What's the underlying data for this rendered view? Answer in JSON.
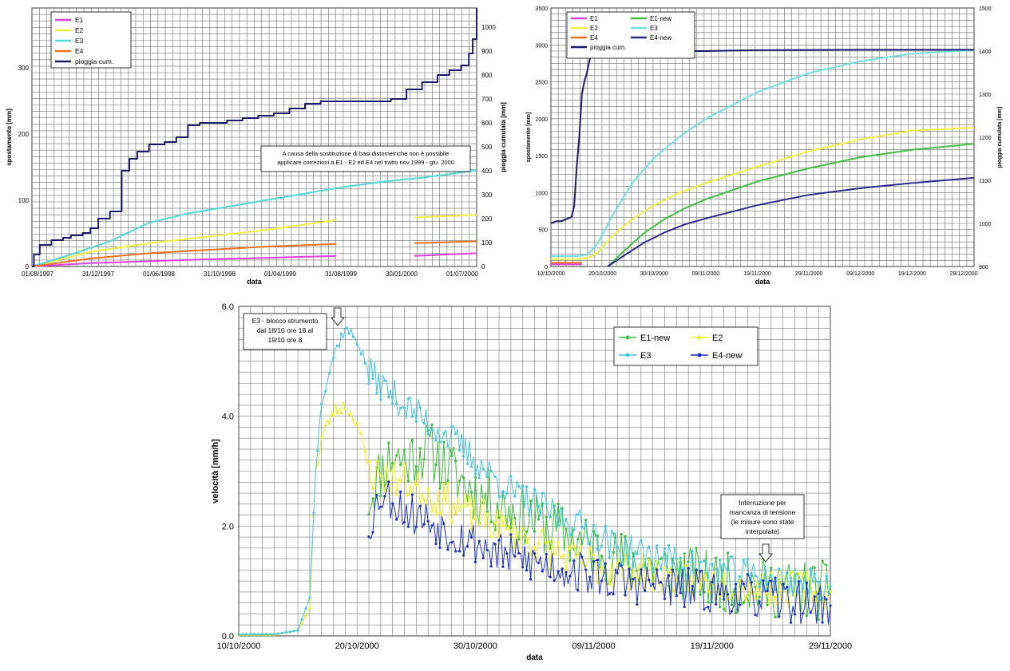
{
  "chart_data": [
    {
      "type": "line",
      "xlabel": "data",
      "ylabel": "spostamento [mm]",
      "y2label": "pioggia cumulata [mm]",
      "x_ticks": [
        "01/08/1997",
        "31/12/1997",
        "01/06/1998",
        "31/10/1998",
        "01/04/1999",
        "31/08/1999",
        "30/01/2000",
        "01/07/2000"
      ],
      "ylim": [
        0,
        390
      ],
      "y_ticks": [
        0,
        100,
        200,
        300
      ],
      "y2lim": [
        0,
        1080
      ],
      "y2_ticks": [
        0,
        100,
        200,
        300,
        400,
        500,
        600,
        700,
        800,
        900,
        1000
      ],
      "x_days_span": 1140,
      "annotation": [
        "A causa della sostituzione di basi distometriche non è possibile",
        "applicare correzioni a E1 - E2 ed E4 nel tratto nov 1999 - giu. 2000"
      ],
      "legend": "top-left",
      "colors": {
        "E1": "#e040e0",
        "E2": "#f0f040",
        "E3": "#50dada",
        "E4": "#f07020",
        "pioggia cum.": "#1a1a70"
      },
      "series": [
        {
          "name": "E1",
          "axis": "left",
          "x": [
            0,
            150,
            300,
            450,
            600,
            780,
            980,
            1140
          ],
          "values": [
            0,
            5,
            8,
            11,
            13,
            16,
            16,
            20
          ]
        },
        {
          "name": "E2",
          "axis": "left",
          "x": [
            0,
            150,
            300,
            450,
            600,
            780,
            980,
            1140
          ],
          "values": [
            0,
            22,
            35,
            45,
            55,
            70,
            74,
            78
          ]
        },
        {
          "name": "E3",
          "axis": "left",
          "x": [
            0,
            100,
            200,
            300,
            400,
            500,
            600,
            700,
            800,
            900,
            1000,
            1140
          ],
          "values": [
            0,
            18,
            38,
            66,
            80,
            90,
            100,
            110,
            120,
            128,
            134,
            145
          ]
        },
        {
          "name": "E4",
          "axis": "left",
          "x": [
            0,
            150,
            300,
            450,
            600,
            780,
            980,
            1140
          ],
          "values": [
            0,
            12,
            20,
            25,
            30,
            34,
            35,
            38
          ]
        },
        {
          "name": "pioggia cum.",
          "axis": "right",
          "x": [
            0,
            5,
            20,
            50,
            80,
            100,
            130,
            150,
            170,
            200,
            230,
            250,
            270,
            300,
            340,
            370,
            400,
            430,
            470,
            500,
            540,
            580,
            620,
            660,
            700,
            740,
            780,
            830,
            880,
            920,
            960,
            1000,
            1040,
            1070,
            1100,
            1120,
            1130,
            1140
          ],
          "values": [
            0,
            50,
            90,
            110,
            120,
            130,
            140,
            160,
            200,
            230,
            400,
            450,
            480,
            510,
            520,
            540,
            590,
            600,
            600,
            610,
            620,
            630,
            640,
            660,
            680,
            690,
            690,
            690,
            690,
            700,
            740,
            770,
            800,
            820,
            840,
            890,
            950,
            1080
          ]
        }
      ]
    },
    {
      "type": "line",
      "xlabel": "data",
      "ylabel": "spostamento [mm]",
      "y2label": "pioggia cumulata [mm]",
      "x_ticks": [
        "10/10/2000",
        "20/10/2000",
        "30/10/2000",
        "09/11/2000",
        "19/11/2000",
        "29/11/2000",
        "09/12/2000",
        "19/12/2000",
        "29/12/2000"
      ],
      "ylim": [
        0,
        3500
      ],
      "y_ticks": [
        0,
        500,
        1000,
        1500,
        2000,
        2500,
        3000,
        3500
      ],
      "y2lim": [
        900,
        1500
      ],
      "y2_ticks": [
        900,
        1000,
        1100,
        1200,
        1300,
        1400,
        1500
      ],
      "x_days_span": 82,
      "legend": "top-left",
      "colors": {
        "E1": "#e040e0",
        "E2": "#f0f040",
        "E4": "#f07020",
        "pioggia cum.": "#1a1a70",
        "E1-new": "#40c040",
        "E3": "#70e0e0",
        "E4-new": "#2a2a90"
      },
      "series": [
        {
          "name": "E1",
          "axis": "left",
          "x": [
            0,
            6
          ],
          "values": [
            30,
            30
          ]
        },
        {
          "name": "E4",
          "axis": "left",
          "x": [
            0,
            6
          ],
          "values": [
            50,
            50
          ]
        },
        {
          "name": "E2",
          "axis": "left",
          "x": [
            0,
            5,
            7,
            9,
            12,
            16,
            20,
            25,
            30,
            40,
            50,
            60,
            70,
            82
          ],
          "values": [
            100,
            100,
            110,
            180,
            420,
            650,
            830,
            1000,
            1130,
            1350,
            1560,
            1720,
            1840,
            1880
          ]
        },
        {
          "name": "E3",
          "axis": "left",
          "x": [
            0,
            5,
            7,
            9,
            12,
            16,
            20,
            25,
            30,
            40,
            50,
            60,
            70,
            82
          ],
          "values": [
            140,
            140,
            160,
            300,
            700,
            1150,
            1470,
            1760,
            2000,
            2360,
            2620,
            2780,
            2880,
            2930
          ]
        },
        {
          "name": "E1-new",
          "axis": "left",
          "x": [
            11,
            14,
            18,
            22,
            26,
            30,
            40,
            50,
            60,
            70,
            82
          ],
          "values": [
            0,
            200,
            450,
            640,
            790,
            910,
            1150,
            1330,
            1480,
            1580,
            1660
          ]
        },
        {
          "name": "E4-new",
          "axis": "left",
          "x": [
            11,
            14,
            18,
            22,
            26,
            30,
            40,
            50,
            60,
            70,
            82
          ],
          "values": [
            0,
            140,
            320,
            460,
            570,
            650,
            830,
            970,
            1060,
            1130,
            1200
          ]
        },
        {
          "name": "pioggia cum.",
          "axis": "right",
          "x": [
            0,
            1,
            2,
            3,
            3.5,
            4,
            4.5,
            5,
            5.5,
            6,
            6.5,
            7,
            7.5,
            8,
            8.5,
            9,
            10,
            14,
            20,
            30,
            40,
            60,
            82
          ],
          "values": [
            1000,
            1005,
            1005,
            1010,
            1012,
            1015,
            1040,
            1130,
            1200,
            1300,
            1330,
            1350,
            1380,
            1400,
            1400,
            1400,
            1400,
            1400,
            1400,
            1400,
            1402,
            1403,
            1403
          ]
        }
      ]
    },
    {
      "type": "line",
      "xlabel": "data",
      "ylabel": "velocità [mm/h]",
      "x_ticks": [
        "10/10/2000",
        "20/10/2000",
        "30/10/2000",
        "09/11/2000",
        "19/11/2000",
        "29/11/2000"
      ],
      "ylim": [
        0,
        6
      ],
      "y_ticks": [
        "0.0",
        "2.0",
        "4.0",
        "6.0"
      ],
      "x_days_span": 50,
      "legend": "top-right",
      "annotation_left": [
        "E3 - blocco strumento",
        "dal 18/10 ore 18 al",
        "19/10 ore 8"
      ],
      "annotation_right": [
        "Interruzione per",
        "mancanza di tensione",
        "(le misure sono state",
        "interpolate)"
      ],
      "colors": {
        "E1-new": "#38c038",
        "E2": "#f0f020",
        "E3": "#40c8e0",
        "E4-new": "#1c2ec8"
      },
      "series": [
        {
          "name": "E1-new",
          "x": [
            11,
            12,
            13,
            14,
            16,
            18,
            20,
            22,
            24,
            26,
            28,
            30,
            32,
            34,
            36,
            38,
            40,
            42,
            44,
            46,
            48,
            50
          ],
          "values": [
            2.5,
            3.0,
            3.3,
            3.2,
            3.4,
            3.0,
            2.6,
            2.4,
            2.2,
            2.0,
            1.8,
            1.6,
            1.4,
            1.3,
            1.2,
            1.1,
            1.0,
            0.95,
            0.9,
            0.85,
            0.85,
            0.8
          ]
        },
        {
          "name": "E2",
          "x": [
            0,
            3,
            5,
            6,
            6.5,
            7,
            8,
            9,
            10,
            11,
            12,
            13,
            14,
            16,
            18,
            20,
            22,
            24,
            26,
            28,
            30,
            32,
            34,
            36,
            38,
            40,
            42,
            44,
            46,
            48,
            50
          ],
          "values": [
            0.02,
            0.02,
            0.1,
            0.5,
            3.0,
            3.6,
            4.1,
            4.2,
            3.9,
            3.0,
            2.9,
            2.9,
            2.8,
            2.6,
            2.4,
            2.2,
            2.0,
            1.8,
            1.6,
            1.4,
            1.3,
            1.2,
            1.15,
            1.1,
            1.05,
            1.0,
            0.95,
            0.9,
            0.85,
            0.85,
            0.8
          ]
        },
        {
          "name": "E3",
          "x": [
            0,
            3,
            5,
            6,
            6.5,
            7,
            8,
            9,
            10,
            11,
            12,
            13,
            14,
            16,
            18,
            20,
            22,
            24,
            26,
            28,
            30,
            32,
            34,
            36,
            38,
            40,
            42,
            44,
            46,
            48,
            50
          ],
          "values": [
            0.03,
            0.03,
            0.1,
            0.7,
            3.0,
            4.3,
            5.1,
            5.6,
            5.4,
            4.8,
            4.6,
            4.4,
            4.2,
            3.9,
            3.6,
            3.2,
            2.8,
            2.5,
            2.3,
            2.1,
            1.9,
            1.6,
            1.5,
            1.4,
            1.3,
            1.2,
            1.15,
            1.1,
            1.0,
            0.95,
            0.9
          ]
        },
        {
          "name": "E4-new",
          "x": [
            11,
            12,
            13,
            14,
            16,
            18,
            20,
            22,
            24,
            26,
            28,
            30,
            32,
            34,
            36,
            38,
            40,
            42,
            44,
            46,
            48,
            50
          ],
          "values": [
            2.0,
            2.6,
            2.5,
            2.3,
            2.1,
            1.9,
            1.7,
            1.5,
            1.4,
            1.3,
            1.2,
            1.1,
            1.0,
            0.95,
            0.9,
            0.85,
            0.8,
            0.75,
            0.7,
            0.65,
            0.6,
            0.55
          ]
        }
      ]
    }
  ]
}
